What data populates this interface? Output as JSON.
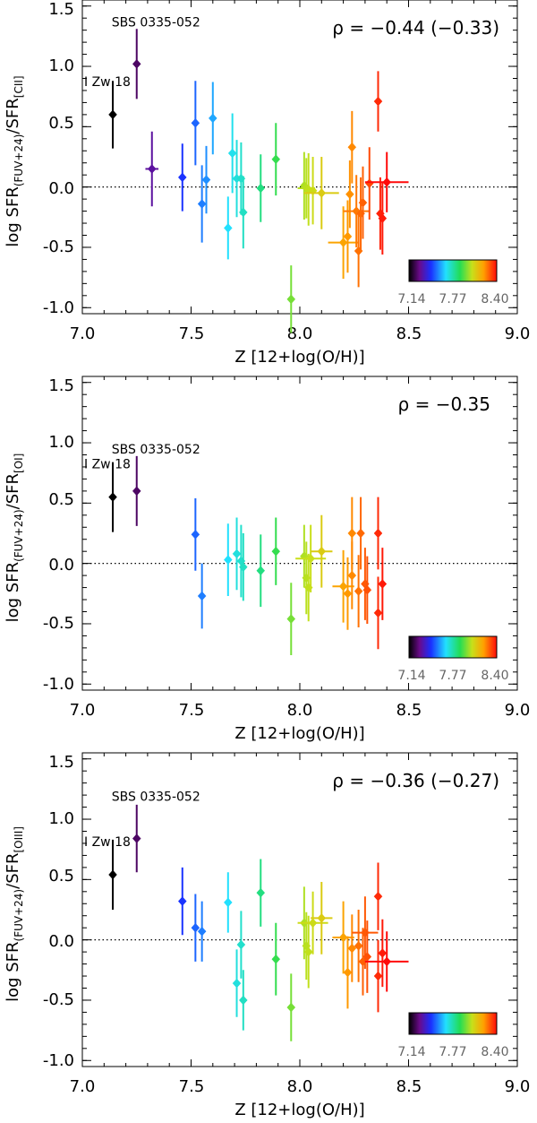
{
  "figure": {
    "x_ticks": [
      "7.0",
      "7.5",
      "8.0",
      "8.5",
      "9.0"
    ],
    "y_ticks": [
      "1.5",
      "1.0",
      "0.5",
      "0.0",
      "-0.5",
      "-1.0"
    ],
    "colorbar_labels": [
      "7.14",
      "7.77",
      "8.40"
    ]
  },
  "chart_data": [
    {
      "type": "scatter",
      "xlabel": "Z [12+log(O/H)]",
      "ylabel_main": "log SFR",
      "ylabel_sub1": "(FUV+24)",
      "ylabel_sep": "/SFR",
      "ylabel_sub2": "[CII]",
      "rho_text": "ρ = −0.44 (−0.33)",
      "xlim": [
        7.0,
        9.0
      ],
      "ylim": [
        -1.05,
        1.55
      ],
      "annotations": [
        {
          "text": "SBS 0335-052",
          "x": 7.25,
          "y": 1.02
        },
        {
          "text": "I Zw 18",
          "x": 7.14,
          "y": 0.6
        }
      ],
      "points": [
        {
          "x": 7.14,
          "y": 0.6,
          "err": 0.28
        },
        {
          "x": 7.25,
          "y": 1.02,
          "err": 0.29
        },
        {
          "x": 7.32,
          "y": 0.15,
          "err": 0.31,
          "xerr": 0.03
        },
        {
          "x": 7.46,
          "y": 0.08,
          "err": 0.28
        },
        {
          "x": 7.52,
          "y": 0.53,
          "err": 0.35
        },
        {
          "x": 7.55,
          "y": -0.14,
          "err": 0.32
        },
        {
          "x": 7.57,
          "y": 0.06,
          "err": 0.28
        },
        {
          "x": 7.6,
          "y": 0.57,
          "err": 0.3
        },
        {
          "x": 7.67,
          "y": -0.34,
          "err": 0.26
        },
        {
          "x": 7.69,
          "y": 0.28,
          "err": 0.33
        },
        {
          "x": 7.71,
          "y": 0.07,
          "err": 0.32
        },
        {
          "x": 7.73,
          "y": 0.07,
          "err": 0.3
        },
        {
          "x": 7.74,
          "y": -0.21,
          "err": 0.3
        },
        {
          "x": 7.82,
          "y": -0.01,
          "err": 0.28
        },
        {
          "x": 7.89,
          "y": 0.23,
          "err": 0.3
        },
        {
          "x": 7.96,
          "y": -0.93,
          "err": 0.28
        },
        {
          "x": 8.02,
          "y": 0.01,
          "err": 0.28
        },
        {
          "x": 8.03,
          "y": -0.01,
          "err": 0.25,
          "xerr": 0.04
        },
        {
          "x": 8.04,
          "y": -0.02,
          "err": 0.3
        },
        {
          "x": 8.06,
          "y": -0.03,
          "err": 0.28
        },
        {
          "x": 8.1,
          "y": -0.05,
          "err": 0.3,
          "xerr": 0.08
        },
        {
          "x": 8.2,
          "y": -0.46,
          "err": 0.3,
          "xerr": 0.07
        },
        {
          "x": 8.22,
          "y": -0.41,
          "err": 0.3
        },
        {
          "x": 8.23,
          "y": -0.06,
          "err": 0.28
        },
        {
          "x": 8.24,
          "y": 0.33,
          "err": 0.3
        },
        {
          "x": 8.26,
          "y": -0.2,
          "err": 0.3,
          "xerr": 0.06
        },
        {
          "x": 8.27,
          "y": -0.53,
          "err": 0.3
        },
        {
          "x": 8.28,
          "y": -0.22,
          "err": 0.3
        },
        {
          "x": 8.29,
          "y": -0.13,
          "err": 0.3
        },
        {
          "x": 8.32,
          "y": 0.03,
          "err": 0.3
        },
        {
          "x": 8.36,
          "y": 0.71,
          "err": 0.25
        },
        {
          "x": 8.37,
          "y": -0.22,
          "err": 0.3
        },
        {
          "x": 8.38,
          "y": -0.26,
          "err": 0.3
        },
        {
          "x": 8.4,
          "y": 0.04,
          "err": 0.25,
          "xerr": 0.1
        }
      ]
    },
    {
      "type": "scatter",
      "xlabel": "Z [12+log(O/H)]",
      "ylabel_main": "log SFR",
      "ylabel_sub1": "(FUV+24)",
      "ylabel_sep": "/SFR",
      "ylabel_sub2": "[OI]",
      "rho_text": "ρ = −0.35",
      "xlim": [
        7.0,
        9.0
      ],
      "ylim": [
        -1.05,
        1.55
      ],
      "annotations": [
        {
          "text": "SBS 0335-052",
          "x": 7.25,
          "y": 0.6
        },
        {
          "text": "I Zw 18",
          "x": 7.14,
          "y": 0.55
        }
      ],
      "points": [
        {
          "x": 7.14,
          "y": 0.55,
          "err": 0.29
        },
        {
          "x": 7.25,
          "y": 0.6,
          "err": 0.29
        },
        {
          "x": 7.52,
          "y": 0.24,
          "err": 0.3
        },
        {
          "x": 7.55,
          "y": -0.27,
          "err": 0.27
        },
        {
          "x": 7.67,
          "y": 0.03,
          "err": 0.3
        },
        {
          "x": 7.71,
          "y": 0.08,
          "err": 0.3
        },
        {
          "x": 7.73,
          "y": 0.02,
          "err": 0.3
        },
        {
          "x": 7.74,
          "y": -0.03,
          "err": 0.28
        },
        {
          "x": 7.82,
          "y": -0.06,
          "err": 0.3
        },
        {
          "x": 7.89,
          "y": 0.1,
          "err": 0.28
        },
        {
          "x": 7.96,
          "y": -0.46,
          "err": 0.3
        },
        {
          "x": 8.02,
          "y": 0.06,
          "err": 0.26
        },
        {
          "x": 8.03,
          "y": -0.12,
          "err": 0.3
        },
        {
          "x": 8.04,
          "y": -0.2,
          "err": 0.28
        },
        {
          "x": 8.05,
          "y": 0.04,
          "err": 0.28,
          "xerr": 0.07
        },
        {
          "x": 8.1,
          "y": 0.1,
          "err": 0.3,
          "xerr": 0.05
        },
        {
          "x": 8.2,
          "y": -0.19,
          "err": 0.3,
          "xerr": 0.05
        },
        {
          "x": 8.22,
          "y": -0.25,
          "err": 0.3
        },
        {
          "x": 8.24,
          "y": 0.25,
          "err": 0.3
        },
        {
          "x": 8.24,
          "y": -0.1,
          "err": 0.28
        },
        {
          "x": 8.27,
          "y": -0.23,
          "err": 0.3
        },
        {
          "x": 8.28,
          "y": 0.25,
          "err": 0.3
        },
        {
          "x": 8.3,
          "y": -0.17,
          "err": 0.3
        },
        {
          "x": 8.31,
          "y": -0.22,
          "err": 0.28
        },
        {
          "x": 8.36,
          "y": 0.25,
          "err": 0.3
        },
        {
          "x": 8.36,
          "y": -0.41,
          "err": 0.3
        },
        {
          "x": 8.38,
          "y": -0.17,
          "err": 0.3
        }
      ]
    },
    {
      "type": "scatter",
      "xlabel": "Z [12+log(O/H)]",
      "ylabel_main": "log SFR",
      "ylabel_sub1": "(FUV+24)",
      "ylabel_sep": "/SFR",
      "ylabel_sub2": "[OIII]",
      "rho_text": "ρ = −0.36 (−0.27)",
      "xlim": [
        7.0,
        9.0
      ],
      "ylim": [
        -1.05,
        1.55
      ],
      "annotations": [
        {
          "text": "SBS 0335-052",
          "x": 7.25,
          "y": 0.84
        },
        {
          "text": "I Zw 18",
          "x": 7.14,
          "y": 0.54
        }
      ],
      "points": [
        {
          "x": 7.14,
          "y": 0.54,
          "err": 0.29
        },
        {
          "x": 7.25,
          "y": 0.84,
          "err": 0.28
        },
        {
          "x": 7.46,
          "y": 0.32,
          "err": 0.28
        },
        {
          "x": 7.52,
          "y": 0.1,
          "err": 0.28
        },
        {
          "x": 7.55,
          "y": 0.07,
          "err": 0.25
        },
        {
          "x": 7.67,
          "y": 0.31,
          "err": 0.25
        },
        {
          "x": 7.71,
          "y": -0.36,
          "err": 0.28
        },
        {
          "x": 7.73,
          "y": -0.04,
          "err": 0.28
        },
        {
          "x": 7.74,
          "y": -0.5,
          "err": 0.25
        },
        {
          "x": 7.82,
          "y": 0.39,
          "err": 0.28
        },
        {
          "x": 7.89,
          "y": -0.16,
          "err": 0.3
        },
        {
          "x": 7.96,
          "y": -0.56,
          "err": 0.28
        },
        {
          "x": 8.02,
          "y": 0.14,
          "err": 0.3
        },
        {
          "x": 8.03,
          "y": -0.05,
          "err": 0.28
        },
        {
          "x": 8.04,
          "y": -0.1,
          "err": 0.3
        },
        {
          "x": 8.06,
          "y": 0.14,
          "err": 0.26,
          "xerr": 0.07
        },
        {
          "x": 8.1,
          "y": 0.18,
          "err": 0.3,
          "xerr": 0.05
        },
        {
          "x": 8.2,
          "y": 0.02,
          "err": 0.3,
          "xerr": 0.05
        },
        {
          "x": 8.22,
          "y": -0.27,
          "err": 0.3
        },
        {
          "x": 8.24,
          "y": -0.07,
          "err": 0.28
        },
        {
          "x": 8.27,
          "y": -0.05,
          "err": 0.3
        },
        {
          "x": 8.29,
          "y": -0.18,
          "err": 0.28
        },
        {
          "x": 8.3,
          "y": 0.06,
          "err": 0.3,
          "xerr": 0.06
        },
        {
          "x": 8.31,
          "y": -0.14,
          "err": 0.3
        },
        {
          "x": 8.36,
          "y": 0.36,
          "err": 0.28
        },
        {
          "x": 8.36,
          "y": -0.3,
          "err": 0.3
        },
        {
          "x": 8.38,
          "y": -0.11,
          "err": 0.28
        },
        {
          "x": 8.4,
          "y": -0.18,
          "err": 0.25,
          "xerr": 0.1
        }
      ]
    }
  ]
}
